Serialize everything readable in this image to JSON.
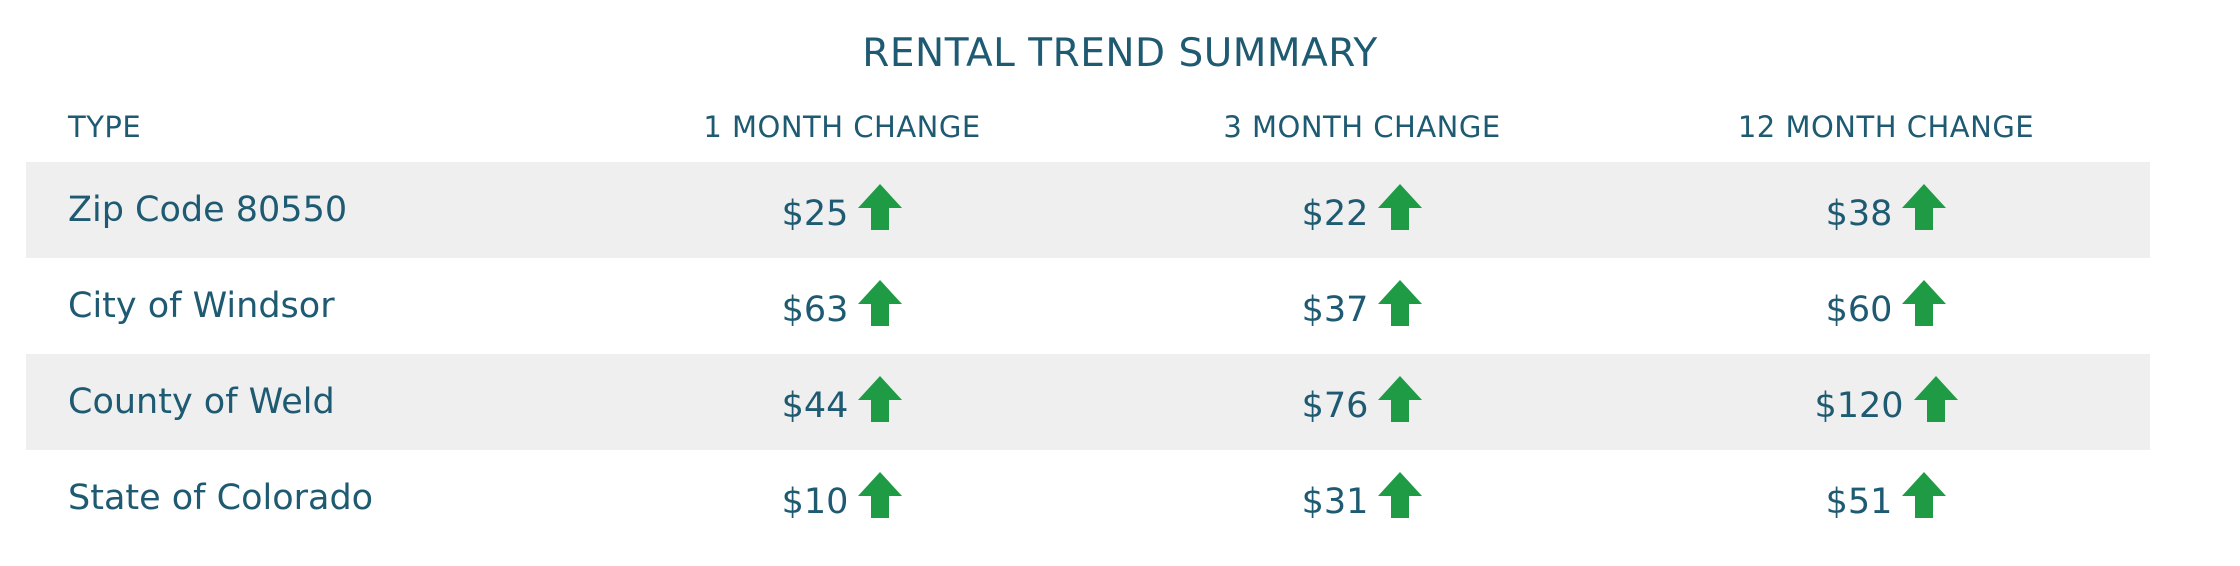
{
  "title": "RENTAL TREND SUMMARY",
  "headers": {
    "type": "TYPE",
    "m1": "1 MONTH CHANGE",
    "m3": "3 MONTH CHANGE",
    "m12": "12 MONTH CHANGE"
  },
  "rows": [
    {
      "type": "Zip Code 80550",
      "m1": "$25",
      "m3": "$22",
      "m12": "$38"
    },
    {
      "type": "City of Windsor",
      "m1": "$63",
      "m3": "$37",
      "m12": "$60"
    },
    {
      "type": "County of Weld",
      "m1": "$44",
      "m3": "$76",
      "m12": "$120"
    },
    {
      "type": "State of Colorado",
      "m1": "$10",
      "m3": "$31",
      "m12": "$51"
    }
  ],
  "icons": {
    "trend": "arrow-up-icon"
  },
  "colors": {
    "text": "#1e5a72",
    "arrow": "#1f9a45",
    "row_shade": "#efefef"
  }
}
